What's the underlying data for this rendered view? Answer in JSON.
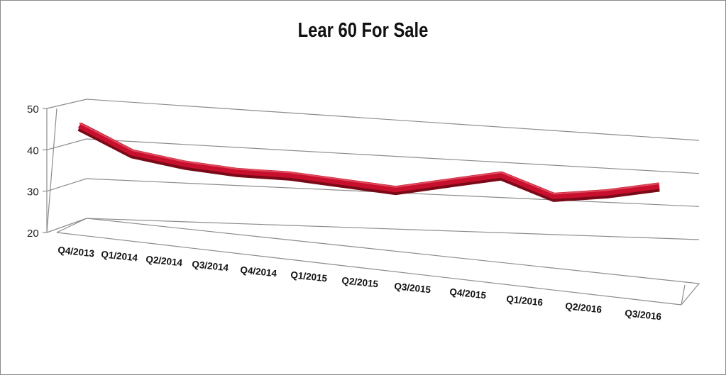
{
  "chart_data": {
    "type": "line",
    "title": "Lear 60 For Sale",
    "categories": [
      "Q4/2013",
      "Q1/2014",
      "Q2/2014",
      "Q3/2014",
      "Q4/2014",
      "Q1/2015",
      "Q2/2015",
      "Q3/2015",
      "Q4/2015",
      "Q1/2016",
      "Q2/2016",
      "Q3/2016"
    ],
    "series": [
      {
        "values": [
          47,
          41,
          39,
          38,
          38,
          37,
          36,
          39,
          42,
          37,
          39,
          42
        ]
      }
    ],
    "yticks": [
      20,
      30,
      40,
      50
    ],
    "ylim": [
      20,
      50
    ],
    "grid": true,
    "legend": "none",
    "line_color": "#c8102e",
    "style": "3d-perspective"
  }
}
